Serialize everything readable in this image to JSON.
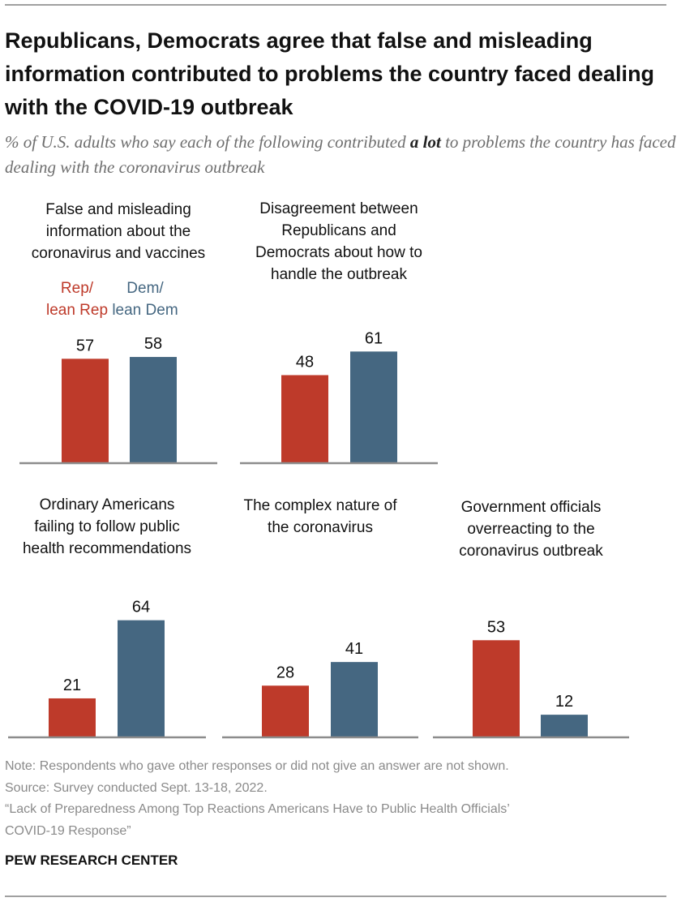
{
  "title": "Republicans, Democrats agree that false and misleading information contributed to problems the country faced dealing with the COVID-19 outbreak",
  "subtitle_pre": "% of U.S. adults who say each of the following contributed ",
  "subtitle_em": "a lot",
  "subtitle_post": " to problems the country has faced dealing with the coronavirus outbreak",
  "colors": {
    "rep": "#be3a2a",
    "dem": "#456781",
    "baseline": "#8c8c8c"
  },
  "chart_data": {
    "type": "bar",
    "legend": {
      "rep": "Rep/ lean Rep",
      "dem": "Dem/ lean Dem",
      "placement": "inline-first-panel"
    },
    "series_names": [
      "Rep/lean Rep",
      "Dem/lean Dem"
    ],
    "ylim": [
      0,
      100
    ],
    "panels": [
      {
        "title": [
          "False and misleading",
          "information about the",
          "coronavirus and vaccines"
        ],
        "rep": 57,
        "dem": 58
      },
      {
        "title": [
          "Disagreement between",
          "Republicans and",
          "Democrats about how to",
          "handle the outbreak"
        ],
        "rep": 48,
        "dem": 61
      },
      {
        "title": [
          "Ordinary Americans",
          "failing to follow public",
          "health recommendations"
        ],
        "rep": 21,
        "dem": 64
      },
      {
        "title": [
          "The complex nature of",
          "the coronavirus"
        ],
        "rep": 28,
        "dem": 41
      },
      {
        "title": [
          "Government officials",
          "overreacting to the",
          "coronavirus outbreak"
        ],
        "rep": 53,
        "dem": 12
      }
    ]
  },
  "notes": [
    "Note: Respondents who gave other responses or did not give an answer are not shown.",
    "Source: Survey conducted Sept. 13-18, 2022.",
    "“Lack of Preparedness Among Top Reactions Americans Have to Public Health Officials’",
    "COVID-19 Response”"
  ],
  "brand": "PEW RESEARCH CENTER"
}
